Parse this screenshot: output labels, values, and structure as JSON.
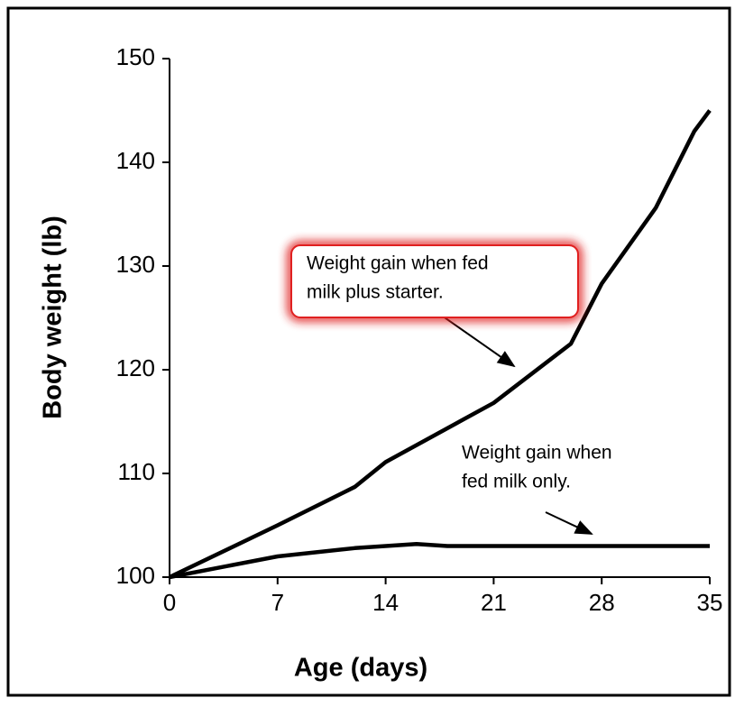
{
  "chart_data": {
    "type": "line",
    "x_label": "Age (days)",
    "y_label": "Body weight (lb)",
    "xlim": [
      0,
      35
    ],
    "xticks": [
      0,
      7,
      14,
      21,
      28,
      35
    ],
    "ylim": [
      100,
      150
    ],
    "yticks": [
      100,
      110,
      120,
      130,
      140,
      150
    ],
    "series": [
      {
        "color": "#000000",
        "x": [
          0,
          7,
          12,
          14,
          21,
          26,
          28,
          31.5,
          34,
          35
        ],
        "values": [
          100,
          105,
          108.7,
          111.1,
          116.8,
          122.5,
          128.3,
          135.6,
          143,
          145
        ]
      },
      {
        "color": "#000000",
        "x": [
          0,
          7,
          12,
          16,
          18,
          35
        ],
        "values": [
          100,
          102,
          102.8,
          103.2,
          103,
          103
        ]
      }
    ],
    "annotations": [
      {
        "lines": [
          "Weight gain when fed",
          "milk plus starter."
        ],
        "highlight": "#e02020"
      },
      {
        "lines": [
          "Weight gain when",
          "fed milk only."
        ]
      }
    ]
  }
}
